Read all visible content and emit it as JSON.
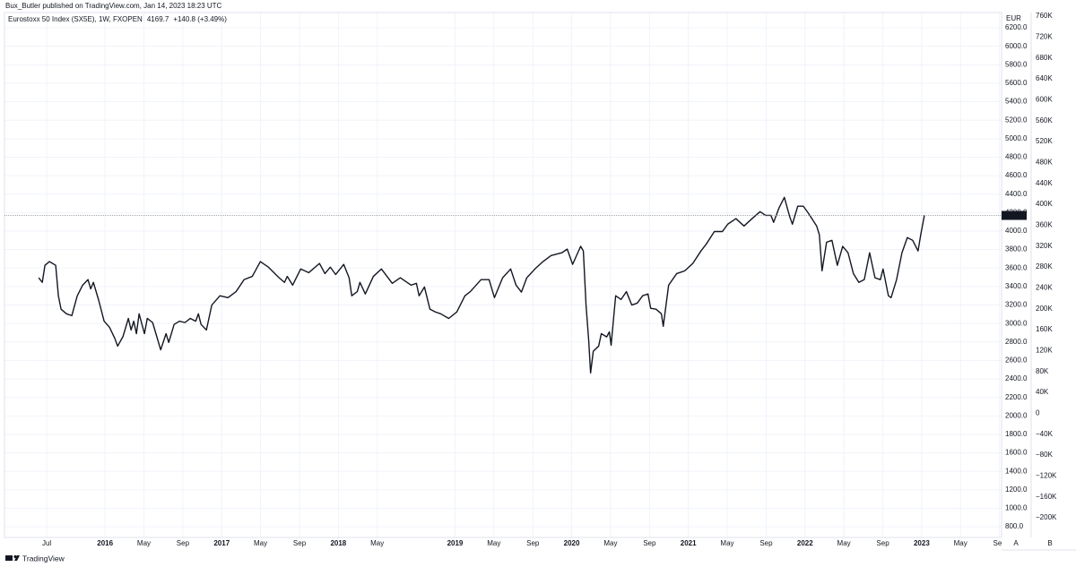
{
  "header": {
    "byline": "Bux_Butler published on TradingView.com, Jan 14, 2023 18:23 UTC"
  },
  "footer": {
    "brand": "TradingView"
  },
  "controls": [
    "A",
    "B"
  ],
  "chart_data": {
    "type": "line",
    "change": "+140.8 (+3.49%)",
    "y_unit": "EUR",
    "grid": true,
    "grid_color": "#f0f3fa",
    "x": [
      2015.431,
      2015.462,
      2015.485,
      2015.523,
      2015.577,
      2015.6,
      2015.623,
      2015.669,
      2015.715,
      2015.762,
      2015.808,
      2015.854,
      2015.877,
      2015.9,
      2015.946,
      2015.992,
      2016.038,
      2016.085,
      2016.108,
      2016.154,
      2016.2,
      2016.223,
      2016.246,
      2016.269,
      2016.292,
      2016.338,
      2016.362,
      2016.408,
      2016.477,
      2016.523,
      2016.546,
      2016.592,
      2016.638,
      2016.685,
      2016.731,
      2016.777,
      2016.8,
      2016.823,
      2016.869,
      2016.915,
      2016.985,
      2017.054,
      2017.123,
      2017.192,
      2017.262,
      2017.331,
      2017.4,
      2017.492,
      2017.538,
      2017.562,
      2017.608,
      2017.677,
      2017.746,
      2017.838,
      2017.885,
      2017.931,
      2017.977,
      2018.046,
      2018.092,
      2018.115,
      2018.162,
      2018.185,
      2018.231,
      2018.3,
      2018.369,
      2018.462,
      2018.531,
      2018.577,
      2018.623,
      2018.669,
      2018.692,
      2018.738,
      2018.785,
      2018.831,
      2018.877,
      2018.946,
      2019.015,
      2019.085,
      2019.131,
      2019.223,
      2019.292,
      2019.338,
      2019.408,
      2019.477,
      2019.523,
      2019.569,
      2019.615,
      2019.685,
      2019.754,
      2019.823,
      2019.915,
      2019.962,
      2020.008,
      2020.077,
      2020.1,
      2020.123,
      2020.146,
      2020.162,
      2020.185,
      2020.231,
      2020.254,
      2020.3,
      2020.323,
      2020.338,
      2020.377,
      2020.423,
      2020.469,
      2020.515,
      2020.562,
      2020.608,
      2020.654,
      2020.677,
      2020.723,
      2020.769,
      2020.785,
      2020.831,
      2020.9,
      2020.969,
      2021.038,
      2021.108,
      2021.154,
      2021.223,
      2021.292,
      2021.338,
      2021.408,
      2021.477,
      2021.546,
      2021.615,
      2021.662,
      2021.708,
      2021.731,
      2021.777,
      2021.823,
      2021.869,
      2021.892,
      2021.938,
      2021.985,
      2022.031,
      2022.1,
      2022.123,
      2022.146,
      2022.185,
      2022.231,
      2022.277,
      2022.323,
      2022.369,
      2022.415,
      2022.462,
      2022.508,
      2022.554,
      2022.6,
      2022.646,
      2022.669,
      2022.715,
      2022.738,
      2022.785,
      2022.831,
      2022.877,
      2022.923,
      2022.969,
      2022.992,
      2023.023
    ],
    "series": [
      {
        "name": "Eurostoxx 50 Index (SX5E), 1W, FXOPEN",
        "color": "#131722",
        "values": [
          3495,
          3445,
          3630,
          3670,
          3630,
          3300,
          3155,
          3105,
          3085,
          3300,
          3415,
          3475,
          3375,
          3445,
          3250,
          3025,
          2960,
          2835,
          2755,
          2860,
          3055,
          2930,
          3025,
          2890,
          3105,
          2890,
          3055,
          3010,
          2715,
          2890,
          2795,
          2990,
          3025,
          3010,
          3055,
          3025,
          3105,
          2990,
          2930,
          3200,
          3300,
          3280,
          3345,
          3475,
          3510,
          3670,
          3610,
          3495,
          3445,
          3510,
          3415,
          3590,
          3550,
          3650,
          3540,
          3610,
          3530,
          3640,
          3495,
          3300,
          3345,
          3445,
          3320,
          3510,
          3590,
          3435,
          3495,
          3455,
          3415,
          3435,
          3300,
          3395,
          3155,
          3125,
          3105,
          3055,
          3125,
          3300,
          3345,
          3475,
          3475,
          3280,
          3495,
          3590,
          3415,
          3340,
          3495,
          3590,
          3670,
          3735,
          3765,
          3805,
          3640,
          3835,
          3785,
          3200,
          2815,
          2465,
          2700,
          2755,
          2890,
          2855,
          2910,
          2765,
          3300,
          3260,
          3345,
          3200,
          3220,
          3300,
          3320,
          3165,
          3155,
          3105,
          2970,
          3415,
          3540,
          3570,
          3650,
          3785,
          3860,
          3995,
          3995,
          4075,
          4135,
          4055,
          4135,
          4210,
          4170,
          4170,
          4095,
          4250,
          4365,
          4155,
          4075,
          4270,
          4270,
          4190,
          4055,
          3960,
          3570,
          3880,
          3900,
          3630,
          3835,
          3765,
          3540,
          3445,
          3475,
          3765,
          3495,
          3475,
          3590,
          3300,
          3280,
          3475,
          3765,
          3930,
          3900,
          3785,
          3960,
          4169.7
        ]
      }
    ],
    "xlim": [
      2015.138,
      2023.685
    ],
    "xticks": [
      {
        "value": 2015.5,
        "label": "Jul"
      },
      2016,
      {
        "value": 2016.333,
        "label": "May"
      },
      {
        "value": 2016.667,
        "label": "Sep"
      },
      2017,
      {
        "value": 2017.333,
        "label": "May"
      },
      {
        "value": 2017.667,
        "label": "Sep"
      },
      2018,
      {
        "value": 2018.333,
        "label": "May"
      },
      2019,
      {
        "value": 2019.333,
        "label": "May"
      },
      {
        "value": 2019.667,
        "label": "Sep"
      },
      2020,
      {
        "value": 2020.333,
        "label": "May"
      },
      {
        "value": 2020.667,
        "label": "Sep"
      },
      2021,
      {
        "value": 2021.333,
        "label": "May"
      },
      {
        "value": 2021.667,
        "label": "Sep"
      },
      2022,
      {
        "value": 2022.333,
        "label": "May"
      },
      {
        "value": 2022.667,
        "label": "Sep"
      },
      2023,
      {
        "value": 2023.333,
        "label": "May"
      },
      {
        "value": 2023.667,
        "label": "Sep"
      }
    ],
    "ylim": [
      685,
      6365
    ],
    "yticks": [
      {
        "value": 800,
        "label": "800.0"
      },
      {
        "value": 1000,
        "label": "1000.0"
      },
      {
        "value": 1200,
        "label": "1200.0"
      },
      {
        "value": 1400,
        "label": "1400.0"
      },
      {
        "value": 1600,
        "label": "1600.0"
      },
      {
        "value": 1800,
        "label": "1800.0"
      },
      {
        "value": 2000,
        "label": "2000.0"
      },
      {
        "value": 2200,
        "label": "2200.0"
      },
      {
        "value": 2400,
        "label": "2400.0"
      },
      {
        "value": 2600,
        "label": "2600.0"
      },
      {
        "value": 2800,
        "label": "2800.0"
      },
      {
        "value": 3000,
        "label": "3000.0"
      },
      {
        "value": 3200,
        "label": "3200.0"
      },
      {
        "value": 3400,
        "label": "3400.0"
      },
      {
        "value": 3600,
        "label": "3600.0"
      },
      {
        "value": 3800,
        "label": "3800.0"
      },
      {
        "value": 4000,
        "label": "4000.0"
      },
      {
        "value": 4200,
        "label": "4200.0"
      },
      {
        "value": 4400,
        "label": "4400.0"
      },
      {
        "value": 4600,
        "label": "4600.0"
      },
      {
        "value": 4800,
        "label": "4800.0"
      },
      {
        "value": 5000,
        "label": "5000.0"
      },
      {
        "value": 5200,
        "label": "5200.0"
      },
      {
        "value": 5400,
        "label": "5400.0"
      },
      {
        "value": 5600,
        "label": "5600.0"
      },
      {
        "value": 5800,
        "label": "5800.0"
      },
      {
        "value": 6000,
        "label": "6000.0"
      },
      {
        "value": 6200,
        "label": "6200.0"
      }
    ],
    "y2lim": [
      -237700,
      766900
    ],
    "y2ticks": [
      {
        "value": -200000,
        "label": "−200K"
      },
      {
        "value": -160000,
        "label": "−160K"
      },
      {
        "value": -120000,
        "label": "−120K"
      },
      {
        "value": -80000,
        "label": "−80K"
      },
      {
        "value": -40000,
        "label": "−40K"
      },
      0,
      {
        "value": 40000,
        "label": "40K"
      },
      {
        "value": 80000,
        "label": "80K"
      },
      {
        "value": 120000,
        "label": "120K"
      },
      {
        "value": 160000,
        "label": "160K"
      },
      {
        "value": 200000,
        "label": "200K"
      },
      {
        "value": 240000,
        "label": "240K"
      },
      {
        "value": 280000,
        "label": "280K"
      },
      {
        "value": 320000,
        "label": "320K"
      },
      {
        "value": 360000,
        "label": "360K"
      },
      {
        "value": 400000,
        "label": "400K"
      },
      {
        "value": 440000,
        "label": "440K"
      },
      {
        "value": 480000,
        "label": "480K"
      },
      {
        "value": 520000,
        "label": "520K"
      },
      {
        "value": 560000,
        "label": "560K"
      },
      {
        "value": 600000,
        "label": "600K"
      },
      {
        "value": 640000,
        "label": "640K"
      },
      {
        "value": 680000,
        "label": "680K"
      },
      {
        "value": 720000,
        "label": "720K"
      },
      {
        "value": 760000,
        "label": "760K"
      }
    ]
  }
}
